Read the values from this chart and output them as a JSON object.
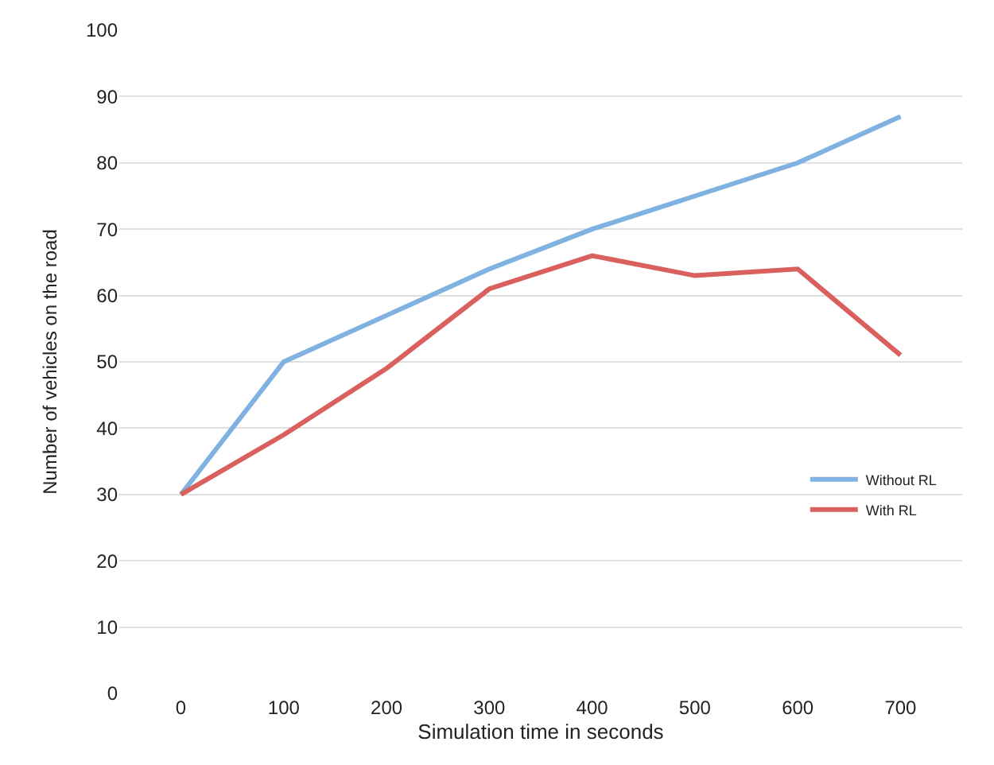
{
  "chart_data": {
    "type": "line",
    "xlabel": "Simulation time in seconds",
    "ylabel": "Number of vehicles on the road",
    "categories": [
      "0",
      "100",
      "200",
      "300",
      "400",
      "500",
      "600",
      "700"
    ],
    "series": [
      {
        "name": "Without RL",
        "color": "#7fb2e0",
        "values": [
          30,
          50,
          57,
          64,
          70,
          75,
          80,
          87
        ]
      },
      {
        "name": "With RL",
        "color": "#d9605c",
        "values": [
          30,
          39,
          49,
          61,
          66,
          63,
          64,
          51
        ]
      }
    ],
    "ylim": [
      0,
      100
    ],
    "yticks": [
      0,
      10,
      20,
      30,
      40,
      50,
      60,
      70,
      80,
      90,
      100
    ],
    "grid": "y",
    "legend": "right",
    "marker": "none",
    "line_style": "solid"
  }
}
